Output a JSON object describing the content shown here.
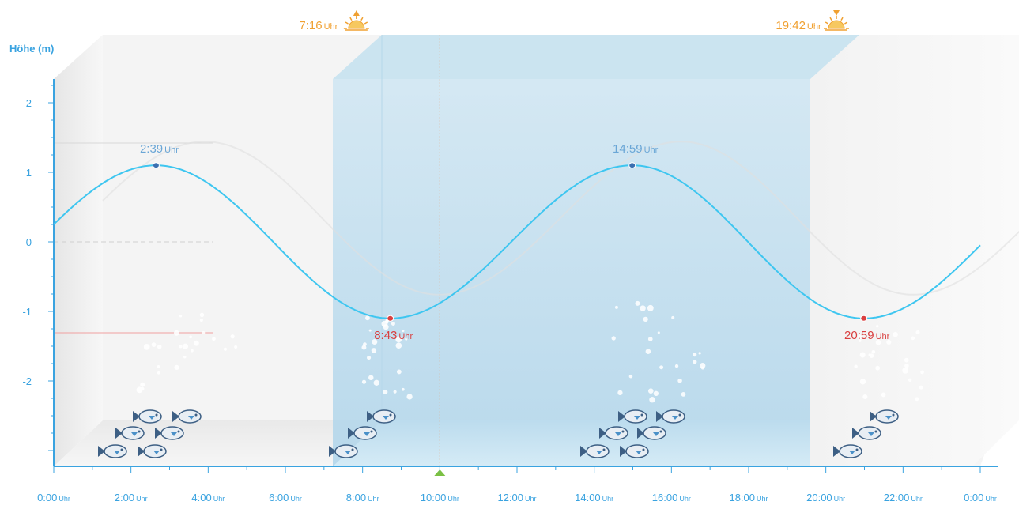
{
  "chart_data": {
    "type": "line",
    "ylabel": "Höhe (m)",
    "y_ticks": [
      {
        "value": 2,
        "label": "2"
      },
      {
        "value": 1,
        "label": "1"
      },
      {
        "value": 0,
        "label": "0"
      },
      {
        "value": -1,
        "label": "-1"
      },
      {
        "value": -2,
        "label": "-2"
      }
    ],
    "ylim": [
      -3.2,
      2.6
    ],
    "xlim_hours": [
      0,
      24
    ],
    "x_ticks": [
      {
        "time": "0:00",
        "unit": "Uhr"
      },
      {
        "time": "2:00",
        "unit": "Uhr"
      },
      {
        "time": "4:00",
        "unit": "Uhr"
      },
      {
        "time": "6:00",
        "unit": "Uhr"
      },
      {
        "time": "8:00",
        "unit": "Uhr"
      },
      {
        "time": "10:00",
        "unit": "Uhr"
      },
      {
        "time": "12:00",
        "unit": "Uhr"
      },
      {
        "time": "14:00",
        "unit": "Uhr"
      },
      {
        "time": "16:00",
        "unit": "Uhr"
      },
      {
        "time": "18:00",
        "unit": "Uhr"
      },
      {
        "time": "20:00",
        "unit": "Uhr"
      },
      {
        "time": "22:00",
        "unit": "Uhr"
      },
      {
        "time": "0:00",
        "unit": "Uhr"
      }
    ],
    "tide_extremes": [
      {
        "kind": "high",
        "time": "2:39",
        "unit": "Uhr",
        "value": 1.1
      },
      {
        "kind": "low",
        "time": "8:43",
        "unit": "Uhr",
        "value": -1.1
      },
      {
        "kind": "high",
        "time": "14:59",
        "unit": "Uhr",
        "value": 1.1
      },
      {
        "kind": "low",
        "time": "20:59",
        "unit": "Uhr",
        "value": -1.1
      }
    ],
    "sun_events": [
      {
        "kind": "sunrise",
        "time": "7:16",
        "unit": "Uhr"
      },
      {
        "kind": "sunset",
        "time": "19:42",
        "unit": "Uhr"
      }
    ],
    "current_time": "10:00",
    "curve_color": "#3ec6f0",
    "axis_color": "#3aa3e0",
    "high_color": "#6aa6d6",
    "low_color": "#d94040",
    "sun_color": "#f0a030"
  }
}
